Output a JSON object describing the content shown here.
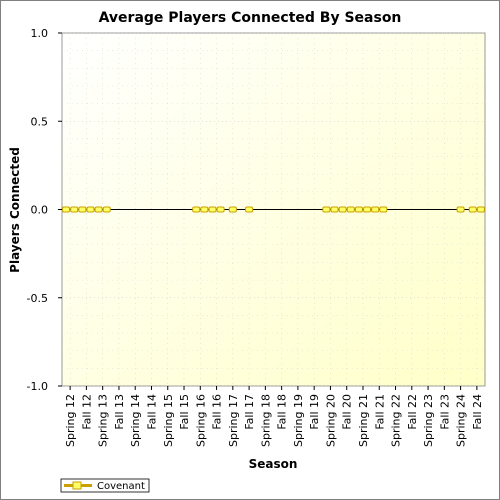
{
  "chart_data": {
    "type": "line",
    "title": "Average Players Connected By Season",
    "xlabel": "Season",
    "ylabel": "Players Connected",
    "ylim": [
      -1.0,
      1.0
    ],
    "yticks": [
      "1.0",
      "0.5",
      "0.0",
      "-0.5",
      "-1.0"
    ],
    "categories": [
      "Spring 12",
      "Fall 12",
      "Spring 13",
      "Fall 13",
      "Spring 14",
      "Fall 14",
      "Spring 15",
      "Fall 15",
      "Spring 16",
      "Fall 16",
      "Spring 17",
      "Fall 17",
      "Spring 18",
      "Fall 18",
      "Spring 19",
      "Fall 19",
      "Spring 20",
      "Fall 20",
      "Spring 21",
      "Fall 21",
      "Spring 22",
      "Fall 22",
      "Spring 23",
      "Fall 23",
      "Spring 24",
      "Fall 24"
    ],
    "series": [
      {
        "name": "Covenant",
        "color": "#c8a000",
        "marker_fill": "#ffff66",
        "points": [
          {
            "x": "Spring 12",
            "y": 0
          },
          {
            "x": "Spring 12",
            "y": 0
          },
          {
            "x": "Fall 12",
            "y": 0
          },
          {
            "x": "Fall 12",
            "y": 0
          },
          {
            "x": "Spring 13",
            "y": 0
          },
          {
            "x": "Spring 13",
            "y": 0
          },
          {
            "x": "Spring 16",
            "y": 0
          },
          {
            "x": "Spring 16",
            "y": 0
          },
          {
            "x": "Fall 16",
            "y": 0
          },
          {
            "x": "Fall 16",
            "y": 0
          },
          {
            "x": "Spring 17",
            "y": 0
          },
          {
            "x": "Fall 17",
            "y": 0
          },
          {
            "x": "Spring 20",
            "y": 0
          },
          {
            "x": "Spring 20",
            "y": 0
          },
          {
            "x": "Fall 20",
            "y": 0
          },
          {
            "x": "Fall 20",
            "y": 0
          },
          {
            "x": "Spring 21",
            "y": 0
          },
          {
            "x": "Spring 21",
            "y": 0
          },
          {
            "x": "Fall 21",
            "y": 0
          },
          {
            "x": "Fall 21",
            "y": 0
          },
          {
            "x": "Spring 24",
            "y": 0
          },
          {
            "x": "Fall 24",
            "y": 0
          },
          {
            "x": "Fall 24",
            "y": 0
          }
        ]
      }
    ],
    "grid": true,
    "legend_position": "bottom-left",
    "plot_background": "#fffde0"
  }
}
